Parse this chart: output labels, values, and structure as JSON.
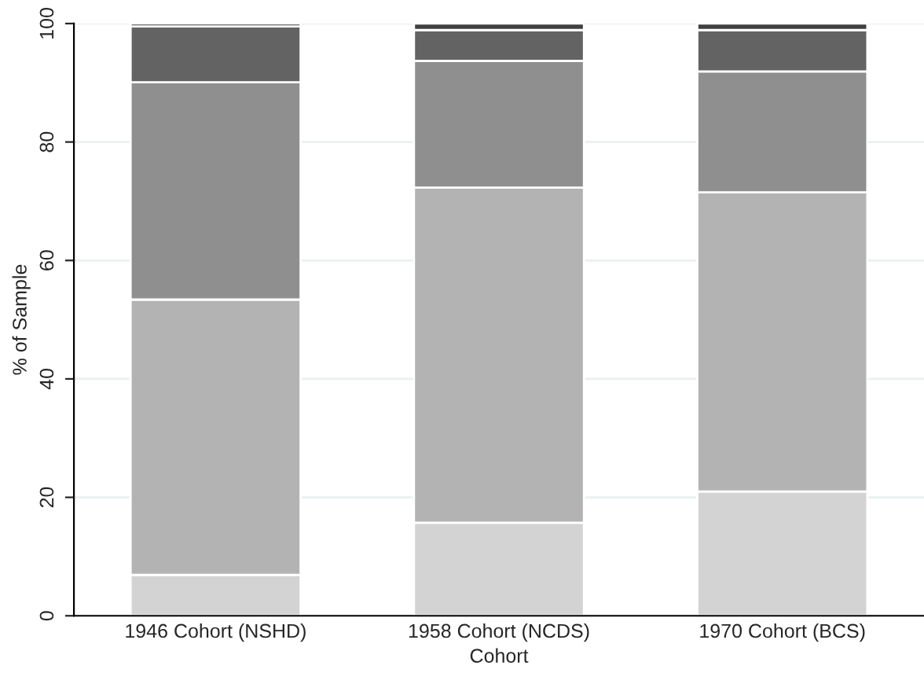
{
  "chart_data": {
    "type": "bar",
    "stacked": true,
    "xlabel": "Cohort",
    "ylabel": "% of Sample",
    "categories": [
      "1946 Cohort (NSHD)",
      "1958 Cohort (NCDS)",
      "1970 Cohort (BCS)"
    ],
    "series": [
      {
        "color": "#d3d3d3",
        "values": [
          6.9,
          15.7,
          21.0
        ]
      },
      {
        "color": "#b3b3b3",
        "values": [
          46.5,
          56.6,
          50.5
        ]
      },
      {
        "color": "#8f8f8f",
        "values": [
          36.7,
          21.4,
          20.4
        ]
      },
      {
        "color": "#636363",
        "values": [
          9.4,
          5.2,
          7.0
        ]
      },
      {
        "color": "#404040",
        "values": [
          0.5,
          1.1,
          1.1
        ]
      }
    ],
    "ylim": [
      0,
      100
    ],
    "yticks": [
      0,
      20,
      40,
      60,
      80,
      100
    ],
    "grid": "y",
    "legend": false
  }
}
